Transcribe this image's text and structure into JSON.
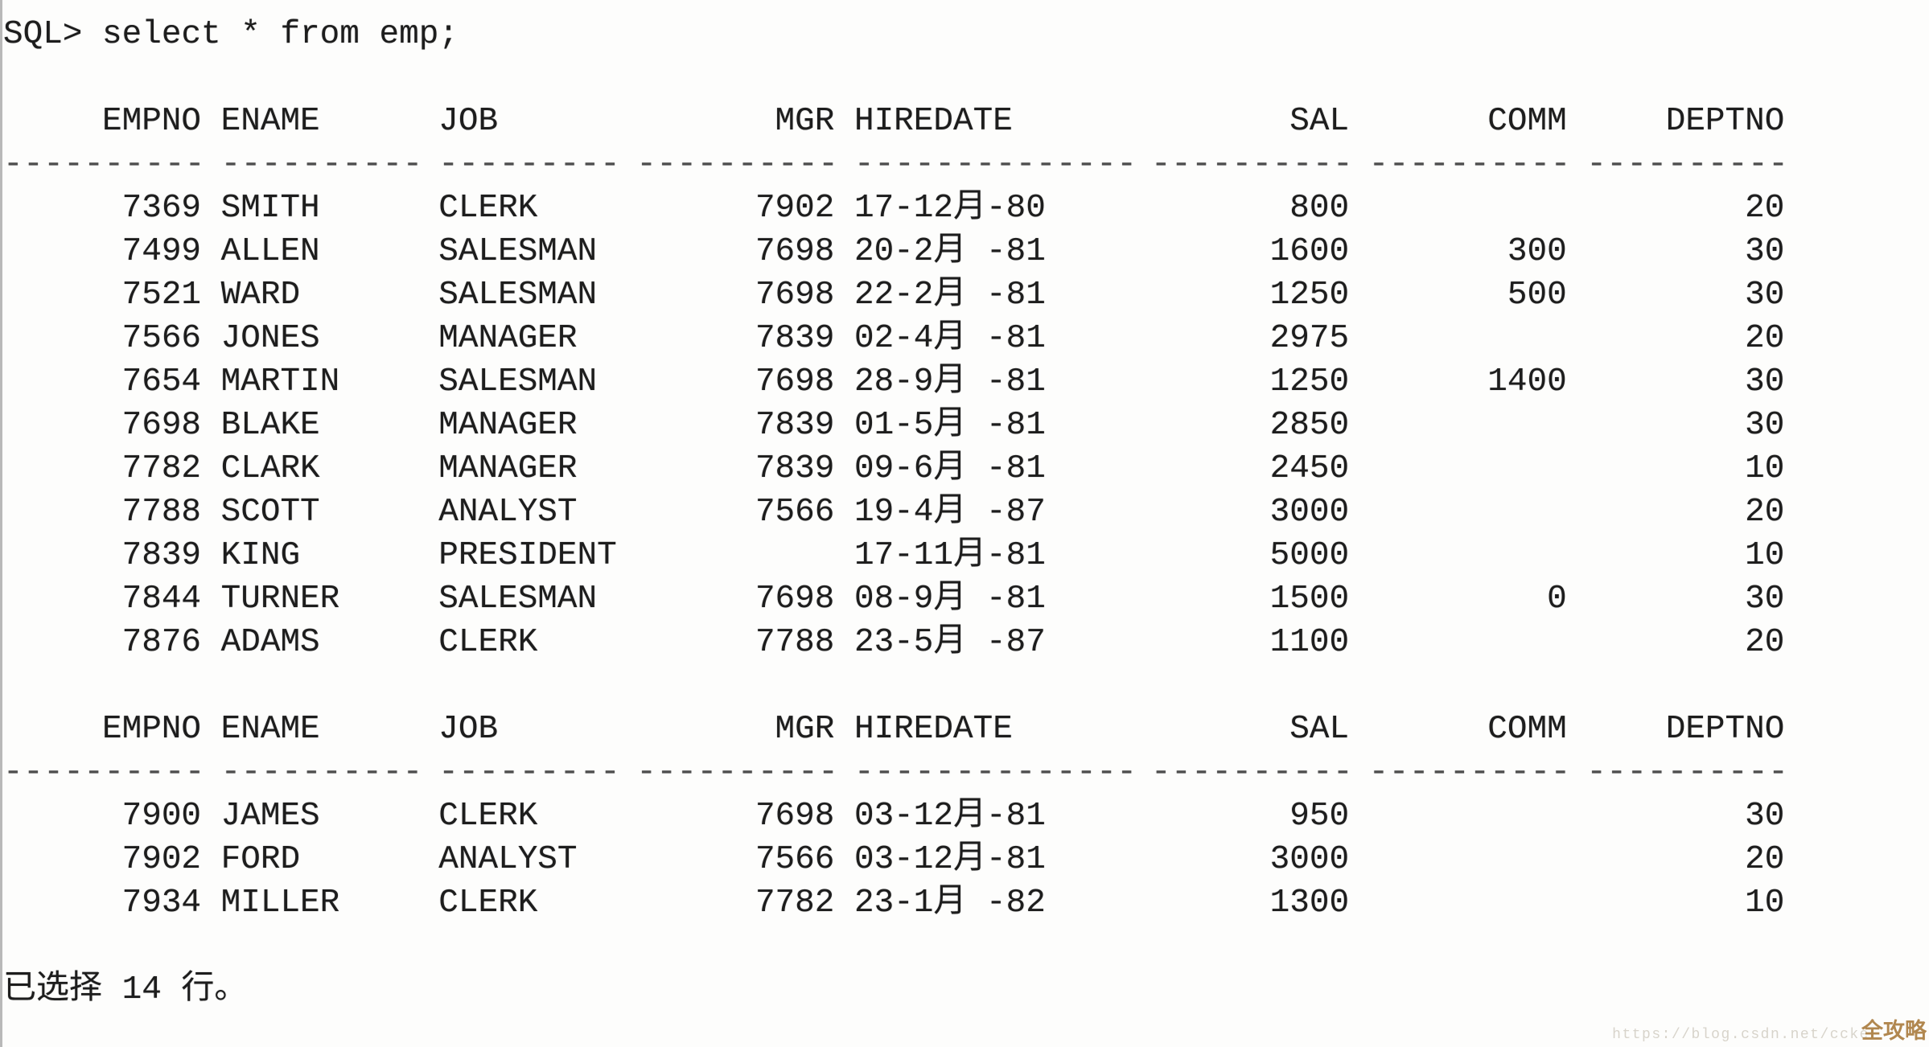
{
  "terminal": {
    "prompt": "SQL> ",
    "command": "select * from emp;",
    "footer": "已选择 14 行。"
  },
  "colors": {
    "background": "#fdfdfc",
    "text": "#1d1d1d",
    "separator": "#4d4d4d",
    "watermark_url": "#d8d4cb",
    "watermark_overlay": "#b1874f"
  },
  "table": {
    "columns": [
      {
        "key": "empno",
        "label": "EMPNO",
        "width": 10,
        "align": "right"
      },
      {
        "key": "ename",
        "label": "ENAME",
        "width": 10,
        "align": "left"
      },
      {
        "key": "job",
        "label": "JOB",
        "width": 9,
        "align": "left"
      },
      {
        "key": "mgr",
        "label": "MGR",
        "width": 10,
        "align": "right"
      },
      {
        "key": "hiredate",
        "label": "HIREDATE",
        "width": 14,
        "align": "left"
      },
      {
        "key": "sal",
        "label": "SAL",
        "width": 10,
        "align": "right"
      },
      {
        "key": "comm",
        "label": "COMM",
        "width": 10,
        "align": "right"
      },
      {
        "key": "deptno",
        "label": "DEPTNO",
        "width": 10,
        "align": "right"
      }
    ],
    "rows_page1": [
      [
        "7369",
        "SMITH",
        "CLERK",
        "7902",
        "17-12月-80",
        "800",
        "",
        "20"
      ],
      [
        "7499",
        "ALLEN",
        "SALESMAN",
        "7698",
        "20-2月 -81",
        "1600",
        "300",
        "30"
      ],
      [
        "7521",
        "WARD",
        "SALESMAN",
        "7698",
        "22-2月 -81",
        "1250",
        "500",
        "30"
      ],
      [
        "7566",
        "JONES",
        "MANAGER",
        "7839",
        "02-4月 -81",
        "2975",
        "",
        "20"
      ],
      [
        "7654",
        "MARTIN",
        "SALESMAN",
        "7698",
        "28-9月 -81",
        "1250",
        "1400",
        "30"
      ],
      [
        "7698",
        "BLAKE",
        "MANAGER",
        "7839",
        "01-5月 -81",
        "2850",
        "",
        "30"
      ],
      [
        "7782",
        "CLARK",
        "MANAGER",
        "7839",
        "09-6月 -81",
        "2450",
        "",
        "10"
      ],
      [
        "7788",
        "SCOTT",
        "ANALYST",
        "7566",
        "19-4月 -87",
        "3000",
        "",
        "20"
      ],
      [
        "7839",
        "KING",
        "PRESIDENT",
        "",
        "17-11月-81",
        "5000",
        "",
        "10"
      ],
      [
        "7844",
        "TURNER",
        "SALESMAN",
        "7698",
        "08-9月 -81",
        "1500",
        "0",
        "30"
      ],
      [
        "7876",
        "ADAMS",
        "CLERK",
        "7788",
        "23-5月 -87",
        "1100",
        "",
        "20"
      ]
    ],
    "rows_page2": [
      [
        "7900",
        "JAMES",
        "CLERK",
        "7698",
        "03-12月-81",
        "950",
        "",
        "30"
      ],
      [
        "7902",
        "FORD",
        "ANALYST",
        "7566",
        "03-12月-81",
        "3000",
        "",
        "20"
      ],
      [
        "7934",
        "MILLER",
        "CLERK",
        "7782",
        "23-1月 -82",
        "1300",
        "",
        "10"
      ]
    ]
  },
  "watermark": {
    "url_text": "https://blog.csdn.net/ccke",
    "overlay_text": "全攻略"
  }
}
